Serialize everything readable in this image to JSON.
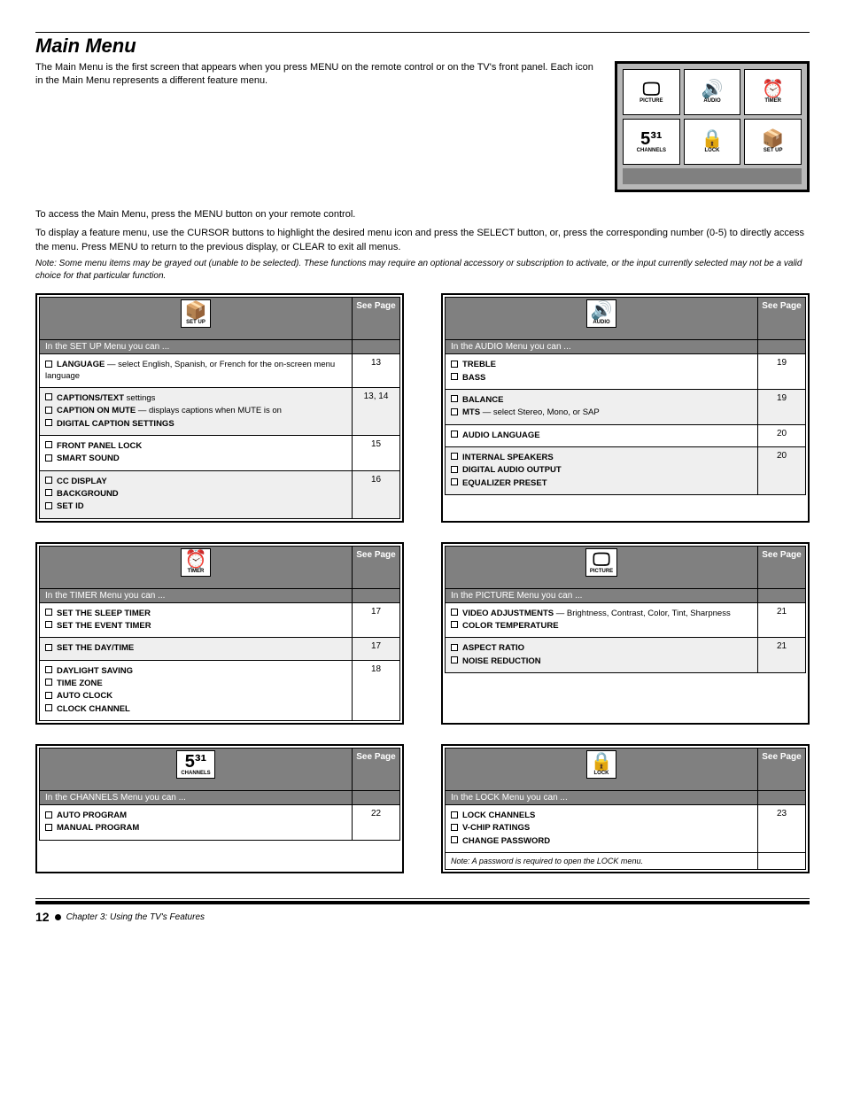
{
  "page": {
    "section_title": "Main Menu",
    "intro": "The Main Menu is the first screen that appears when you press MENU on the remote control or on the TV's front panel. Each icon in the Main Menu represents a different feature menu.",
    "mid_line1": "To access the Main Menu, press the MENU button on your remote control.",
    "mid_line2": "To display a feature menu, use the CURSOR buttons to highlight the desired menu icon and press the SELECT button, or, press the corresponding number (0-5) to directly access the menu. Press MENU to return to the previous display, or CLEAR to exit all menus.",
    "note": "Note: Some menu items may be grayed out (unable to be selected). These functions may require an optional accessory or subscription to activate, or the input currently selected may not be a valid choice for that particular function.",
    "main_menu_icons": [
      {
        "label": "PICTURE",
        "glyph": "🖵"
      },
      {
        "label": "AUDIO",
        "glyph": "🔊"
      },
      {
        "label": "TIMER",
        "glyph": "⏰"
      },
      {
        "label": "CHANNELS",
        "glyph": "5³¹"
      },
      {
        "label": "LOCK",
        "glyph": "🔒"
      },
      {
        "label": "SET UP",
        "glyph": "📦"
      }
    ]
  },
  "tables": {
    "setup": {
      "icon_label": "SET UP",
      "icon_glyph": "📦",
      "header_question": "In the SET UP Menu you can ...",
      "header_page": "See Page",
      "rows": [
        {
          "shade": false,
          "page": "13",
          "items": [
            {
              "b": "LANGUAGE",
              "t": " — select English, Spanish, or French for the on-screen menu language"
            }
          ]
        },
        {
          "shade": true,
          "page": "13, 14",
          "items": [
            {
              "b": "CAPTIONS/TEXT",
              "t": " settings"
            },
            {
              "b": "CAPTION ON MUTE",
              "t": " — displays captions when MUTE is on"
            },
            {
              "b": "DIGITAL CAPTION SETTINGS",
              "t": ""
            }
          ]
        },
        {
          "shade": false,
          "page": "15",
          "items": [
            {
              "b": "FRONT PANEL LOCK",
              "t": ""
            },
            {
              "b": "SMART SOUND",
              "t": ""
            }
          ]
        },
        {
          "shade": true,
          "page": "16",
          "items": [
            {
              "b": "CC DISPLAY",
              "t": ""
            },
            {
              "b": "BACKGROUND",
              "t": ""
            },
            {
              "b": "SET ID",
              "t": ""
            }
          ]
        }
      ]
    },
    "audio": {
      "icon_label": "AUDIO",
      "icon_glyph": "🔊",
      "header_question": "In the AUDIO Menu you can ...",
      "header_page": "See Page",
      "rows": [
        {
          "shade": false,
          "page": "19",
          "items": [
            {
              "b": "TREBLE",
              "t": ""
            },
            {
              "b": "BASS",
              "t": ""
            }
          ]
        },
        {
          "shade": true,
          "page": "19",
          "items": [
            {
              "b": "BALANCE",
              "t": ""
            },
            {
              "b": "MTS",
              "t": " — select Stereo, Mono, or SAP"
            }
          ]
        },
        {
          "shade": false,
          "page": "20",
          "items": [
            {
              "b": "AUDIO LANGUAGE",
              "t": ""
            }
          ]
        },
        {
          "shade": true,
          "page": "20",
          "items": [
            {
              "b": "INTERNAL SPEAKERS",
              "t": ""
            },
            {
              "b": "DIGITAL AUDIO OUTPUT",
              "t": ""
            },
            {
              "b": "EQUALIZER PRESET",
              "t": ""
            }
          ]
        }
      ]
    },
    "timer": {
      "icon_label": "TIMER",
      "icon_glyph": "⏰",
      "header_question": "In the TIMER Menu you can ...",
      "header_page": "See Page",
      "rows": [
        {
          "shade": false,
          "page": "17",
          "items": [
            {
              "b": "SET THE SLEEP TIMER",
              "t": ""
            },
            {
              "b": "SET THE EVENT TIMER",
              "t": ""
            }
          ]
        },
        {
          "shade": true,
          "page": "17",
          "items": [
            {
              "b": "SET THE DAY/TIME",
              "t": ""
            }
          ]
        },
        {
          "shade": false,
          "page": "18",
          "items": [
            {
              "b": "DAYLIGHT SAVING",
              "t": ""
            },
            {
              "b": "TIME ZONE",
              "t": ""
            },
            {
              "b": "AUTO CLOCK",
              "t": ""
            },
            {
              "b": "CLOCK CHANNEL",
              "t": ""
            }
          ]
        }
      ]
    },
    "picture": {
      "icon_label": "PICTURE",
      "icon_glyph": "🖵",
      "header_question": "In the PICTURE Menu you can ...",
      "header_page": "See Page",
      "rows": [
        {
          "shade": false,
          "page": "21",
          "items": [
            {
              "b": "VIDEO ADJUSTMENTS",
              "t": " — Brightness, Contrast, Color, Tint, Sharpness"
            },
            {
              "b": "COLOR TEMPERATURE",
              "t": ""
            }
          ]
        },
        {
          "shade": true,
          "page": "21",
          "items": [
            {
              "b": "ASPECT RATIO",
              "t": ""
            },
            {
              "b": "NOISE REDUCTION",
              "t": ""
            }
          ]
        }
      ]
    },
    "channels": {
      "icon_label": "CHANNELS",
      "icon_glyph": "5³¹",
      "header_question": "In the CHANNELS Menu you can ...",
      "header_page": "See Page",
      "rows": [
        {
          "shade": false,
          "page": "22",
          "items": [
            {
              "b": "AUTO PROGRAM",
              "t": ""
            },
            {
              "b": "MANUAL PROGRAM",
              "t": ""
            }
          ]
        }
      ]
    },
    "lock": {
      "icon_label": "LOCK",
      "icon_glyph": "🔒",
      "header_question": "In the LOCK Menu you can ...",
      "header_page": "See Page",
      "rows": [
        {
          "shade": false,
          "page": "23",
          "items": [
            {
              "b": "LOCK CHANNELS",
              "t": ""
            },
            {
              "b": "V-CHIP RATINGS",
              "t": ""
            },
            {
              "b": "CHANGE PASSWORD",
              "t": ""
            }
          ]
        }
      ],
      "extra_row": {
        "t": "Note: A password is required to open the LOCK menu.",
        "page": ""
      }
    }
  },
  "footer": {
    "page_number": "12",
    "text": "Chapter 3: Using the TV's Features"
  }
}
